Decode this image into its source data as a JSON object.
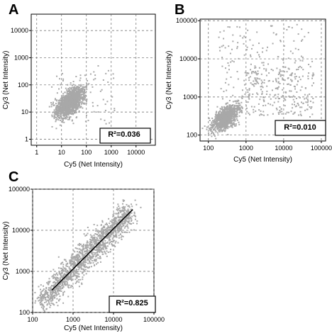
{
  "figure": {
    "panels": [
      {
        "letter": "A",
        "r2_label": "R²=0.036"
      },
      {
        "letter": "B",
        "r2_label": "R²=0.010"
      },
      {
        "letter": "C",
        "r2_label": "R²=0.825"
      }
    ]
  },
  "chart_data": [
    {
      "type": "scatter",
      "panel": "A",
      "xlabel": "Cy5 (Net Intensity)",
      "ylabel": "Cy3 (Net Intensity)",
      "xscale": "log",
      "yscale": "log",
      "xlim": [
        0.6,
        60000
      ],
      "ylim": [
        0.6,
        40000
      ],
      "xticks": [
        1,
        10,
        100,
        1000,
        10000
      ],
      "xtick_labels": [
        "1",
        "10",
        "100",
        "1000",
        "10000"
      ],
      "yticks": [
        1,
        10,
        100,
        1000,
        10000
      ],
      "ytick_labels": [
        "1",
        "10",
        "100",
        "1000",
        "10000"
      ],
      "grid": true,
      "annotation": "R²=0.036",
      "point_color": "#a8a8a8",
      "point_count": 1400,
      "cluster": {
        "x_log10_center": 1.35,
        "y_log10_center": 1.35,
        "log10_spread": 0.28,
        "correlation": 0.6
      },
      "series": [
        {
          "values": [
            [
              20,
              20
            ],
            [
              30,
              40
            ],
            [
              12,
              12
            ],
            [
              60,
              90
            ],
            [
              8,
              6
            ],
            [
              150,
              250
            ],
            [
              200,
              300
            ],
            [
              5,
              10
            ],
            [
              40,
              18
            ],
            [
              300,
              500
            ]
          ]
        }
      ]
    },
    {
      "type": "scatter",
      "panel": "B",
      "xlabel": "Cy5 (Net Intensity)",
      "ylabel": "Cy3 (Net Intensity)",
      "xscale": "log",
      "yscale": "log",
      "xlim": [
        60,
        130000
      ],
      "ylim": [
        70,
        110000
      ],
      "xticks": [
        100,
        1000,
        10000,
        100000
      ],
      "xtick_labels": [
        "100",
        "1000",
        "10000",
        "100000"
      ],
      "yticks": [
        100,
        1000,
        10000,
        100000
      ],
      "ytick_labels": [
        "100",
        "1000",
        "10000",
        "100000"
      ],
      "grid": true,
      "annotation": "R²=0.010",
      "point_color": "#a8a8a8",
      "point_count": 1300,
      "cluster": {
        "x_log10_center": 2.45,
        "y_log10_center": 2.45,
        "log10_spread": 0.18,
        "correlation": 0.6
      },
      "series": [
        {
          "values": [
            [
              250,
              300
            ],
            [
              400,
              500
            ],
            [
              5000,
              1500
            ],
            [
              20000,
              4000
            ],
            [
              200,
              20000
            ],
            [
              30000,
              60000
            ],
            [
              700,
              40000
            ],
            [
              50000,
              300
            ],
            [
              10000,
              10000
            ],
            [
              3000,
              800
            ]
          ]
        }
      ]
    },
    {
      "type": "scatter",
      "panel": "C",
      "xlabel": "Cy5 (Net Intensity)",
      "ylabel": "Cy3 (Net Intensity)",
      "xscale": "log",
      "yscale": "log",
      "xlim": [
        100,
        100000
      ],
      "ylim": [
        100,
        100000
      ],
      "xticks": [
        100,
        1000,
        10000,
        100000
      ],
      "xtick_labels": [
        "100",
        "1000",
        "10000",
        "100000"
      ],
      "yticks": [
        100,
        1000,
        10000,
        100000
      ],
      "ytick_labels": [
        "100",
        "1000",
        "10000",
        "100000"
      ],
      "grid": true,
      "annotation": "R²=0.825",
      "point_color": "#a8a8a8",
      "point_count": 1500,
      "cluster": {
        "x_log10_range": [
          2.2,
          4.4
        ],
        "log10_spread": 0.17
      },
      "fit_line": {
        "x": [
          300,
          30000
        ],
        "y": [
          350,
          32000
        ]
      },
      "series": [
        {
          "values": [
            [
              300,
              350
            ],
            [
              1000,
              1000
            ],
            [
              3000,
              3200
            ],
            [
              10000,
              9000
            ],
            [
              20000,
              25000
            ],
            [
              150,
              200
            ],
            [
              500,
              800
            ],
            [
              5000,
              3000
            ]
          ]
        }
      ]
    }
  ]
}
